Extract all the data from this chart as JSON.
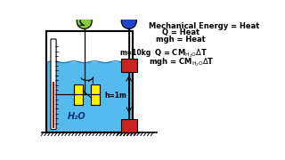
{
  "bg_color": "#ffffff",
  "tank_fill": "#55bbee",
  "tank_border": "#000000",
  "therm_fill": "#ffffff",
  "mercury_color": "#cc0000",
  "pulley_green": "#88cc33",
  "pulley_blue": "#2244cc",
  "weight_color": "#cc2222",
  "paddle_color": "#ffee00",
  "text_color": "#000000",
  "water_label": "H₂O",
  "mass_label": "m=10kg",
  "height_label": "h=1m",
  "line1": "Mechanical Energy = Heat",
  "line2": "Q = Heat",
  "line3": "mgh = Heat"
}
